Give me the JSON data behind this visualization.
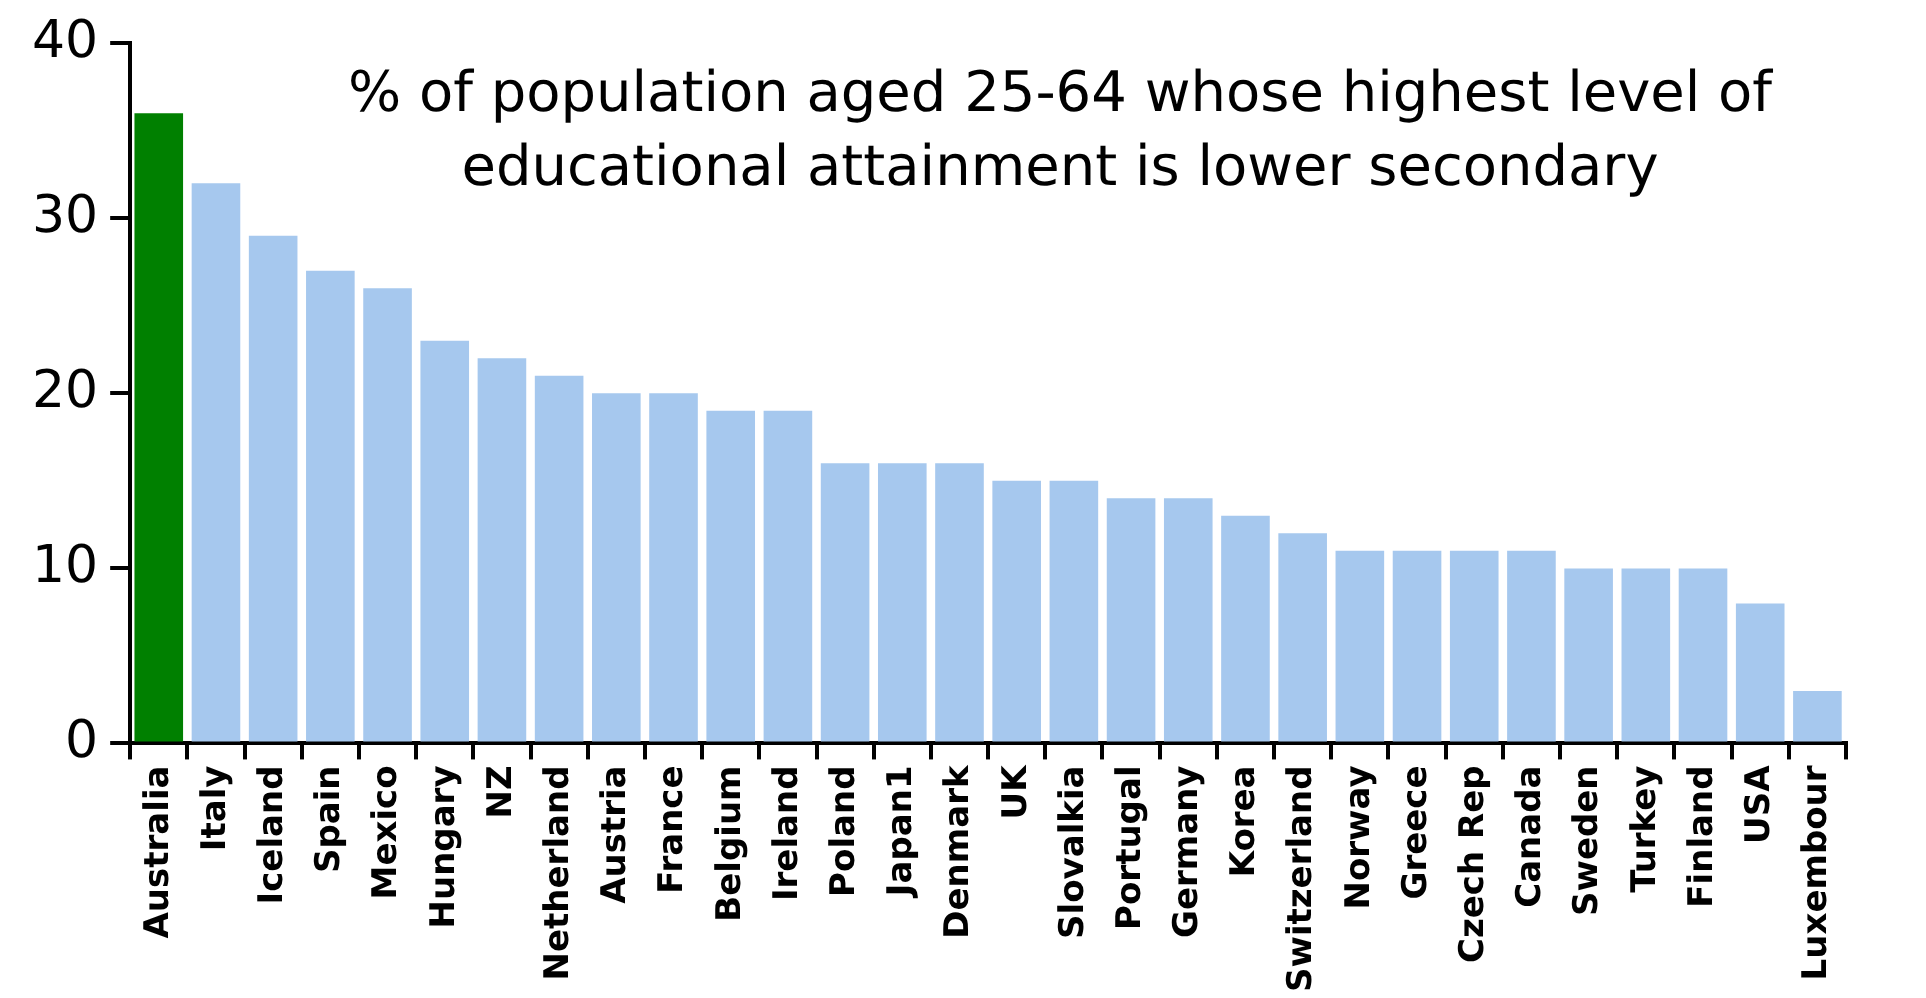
{
  "chart_data": {
    "type": "bar",
    "categories": [
      "Australia",
      "Italy",
      "Iceland",
      "Spain",
      "Mexico",
      "Hungary",
      "NZ",
      "Netherland",
      "Austria",
      "France",
      "Belgium",
      "Ireland",
      "Poland",
      "Japan1",
      "Denmark",
      "UK",
      "Slovalkia",
      "Portugal",
      "Germany",
      "Korea",
      "Switzerland",
      "Norway",
      "Greece",
      "Czech Rep",
      "Canada",
      "Sweden",
      "Turkey",
      "Finland",
      "USA",
      "Luxembour"
    ],
    "values": [
      36,
      32,
      29,
      27,
      26,
      23,
      22,
      21,
      20,
      20,
      19,
      19,
      16,
      16,
      16,
      15,
      15,
      14,
      14,
      13,
      12,
      11,
      11,
      11,
      11,
      10,
      10,
      10,
      8,
      3
    ],
    "colors": [
      "#008000",
      "#a6c8ee",
      "#a6c8ee",
      "#a6c8ee",
      "#a6c8ee",
      "#a6c8ee",
      "#a6c8ee",
      "#a6c8ee",
      "#a6c8ee",
      "#a6c8ee",
      "#a6c8ee",
      "#a6c8ee",
      "#a6c8ee",
      "#a6c8ee",
      "#a6c8ee",
      "#a6c8ee",
      "#a6c8ee",
      "#a6c8ee",
      "#a6c8ee",
      "#a6c8ee",
      "#a6c8ee",
      "#a6c8ee",
      "#a6c8ee",
      "#a6c8ee",
      "#a6c8ee",
      "#a6c8ee",
      "#a6c8ee",
      "#a6c8ee",
      "#a6c8ee",
      "#a6c8ee"
    ],
    "ylim": [
      0,
      40
    ],
    "yticks": [
      0,
      10,
      20,
      30,
      40
    ],
    "grid": false,
    "legend": false,
    "annotations": [
      "% of population aged 25-64 whose highest level of educational attainment is lower secondary"
    ]
  }
}
